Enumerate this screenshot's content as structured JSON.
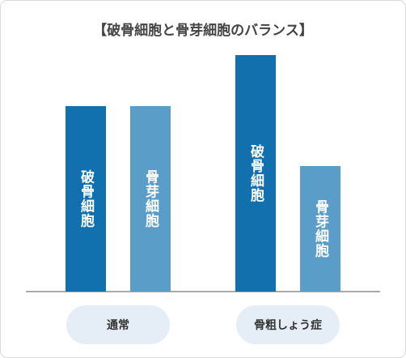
{
  "chart_data": {
    "type": "bar",
    "title": "【破骨細胞と骨芽細胞のバランス】",
    "categories": [
      "通常",
      "骨粗しょう症"
    ],
    "series": [
      {
        "name": "破骨細胞",
        "color": "#1170ae",
        "values": [
          229,
          292
        ]
      },
      {
        "name": "骨芽細胞",
        "color": "#5b9dc9",
        "values": [
          229,
          155
        ]
      }
    ],
    "ylim": [
      0,
      300
    ]
  }
}
